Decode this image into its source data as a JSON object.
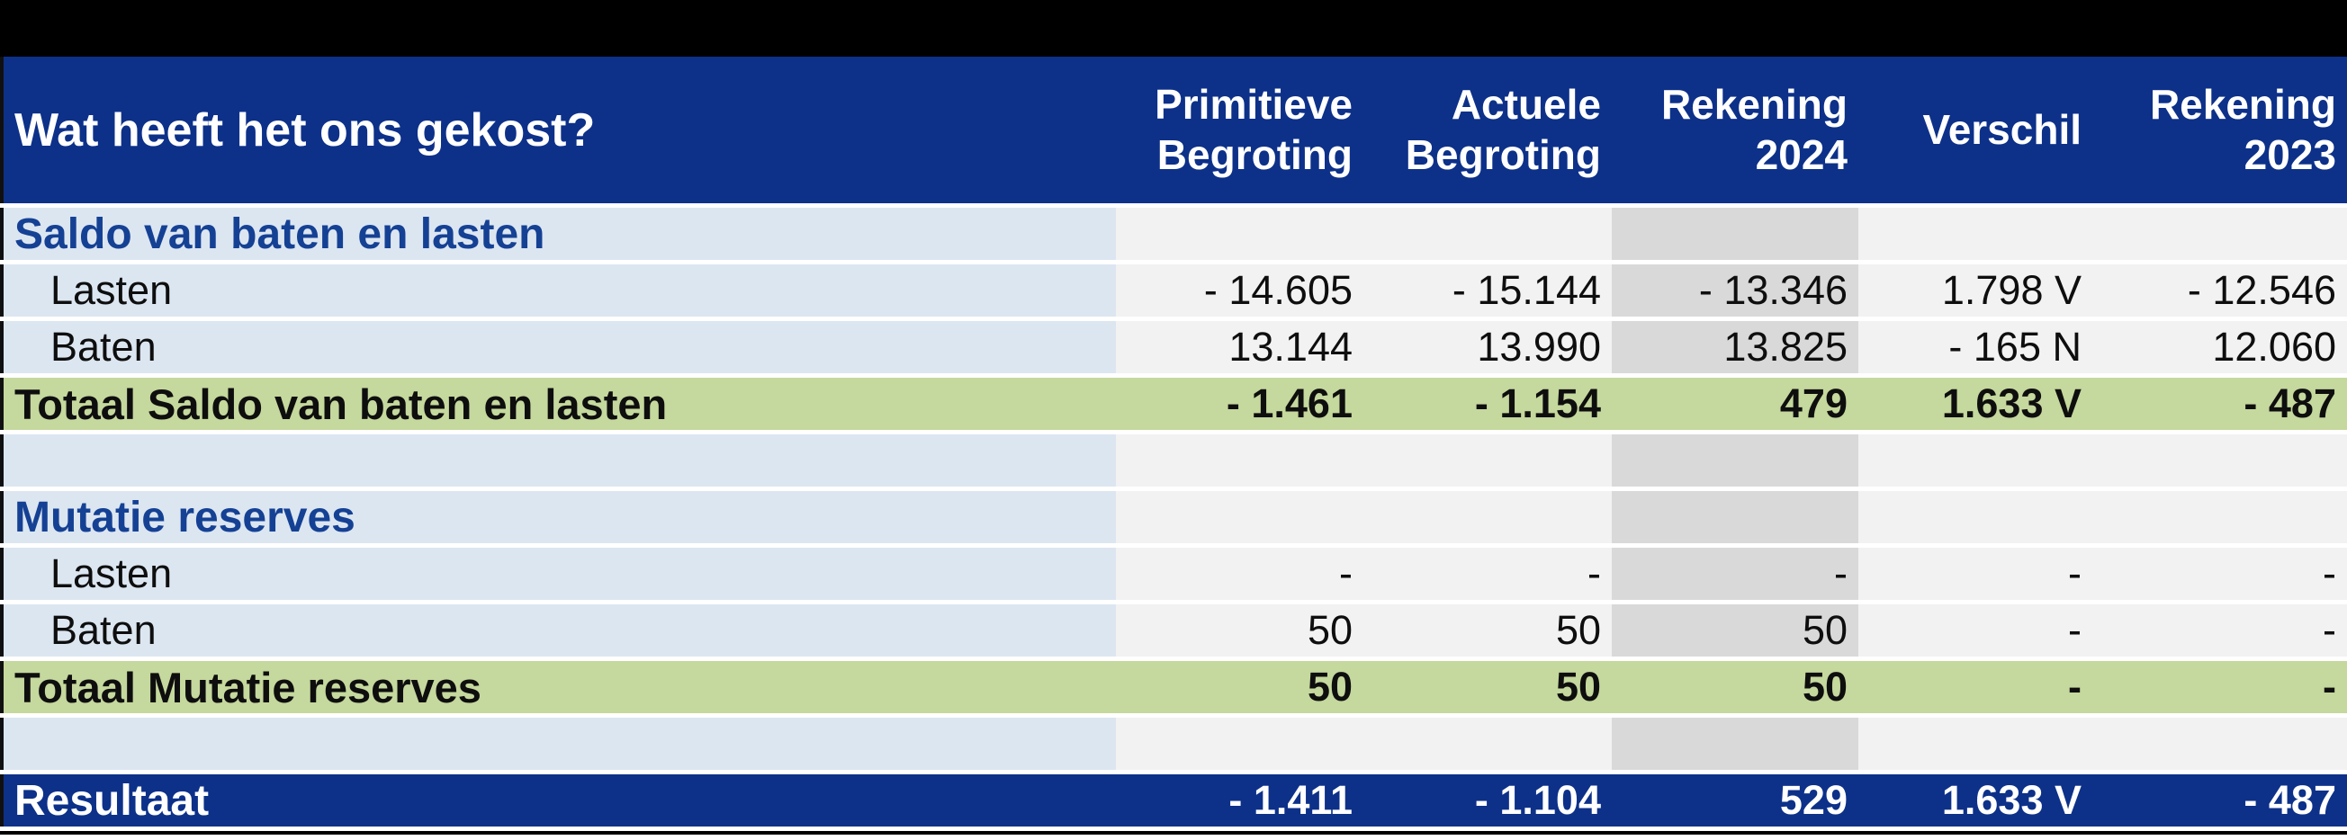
{
  "colors": {
    "top_band": "#000000",
    "header_bg": "#0d3189",
    "header_text": "#ffffff",
    "label_col_bg": "#dce6f1",
    "numeric_col_bg": "#f2f2f2",
    "rekening2024_col_bg": "#d9d9d9",
    "total_row_bg": "#c5d89d",
    "section_text": "#154194",
    "result_row_bg": "#0d3189",
    "row_gap": "#ffffff",
    "bottom_line": "#000000"
  },
  "header": {
    "title": "Wat heeft het ons gekost?",
    "columns": [
      "Primitieve\nBegroting",
      "Actuele\nBegroting",
      "Rekening\n2024",
      "Verschil",
      "Rekening\n2023"
    ]
  },
  "rows": [
    {
      "type": "section",
      "label": "Saldo van baten en lasten",
      "values": [
        "",
        "",
        "",
        "",
        ""
      ]
    },
    {
      "type": "data",
      "label": "Lasten",
      "values": [
        "- 14.605",
        "- 15.144",
        "- 13.346",
        "1.798 V",
        "- 12.546"
      ]
    },
    {
      "type": "data",
      "label": "Baten",
      "values": [
        "13.144",
        "13.990",
        "13.825",
        "- 165 N",
        "12.060"
      ]
    },
    {
      "type": "total",
      "label": "Totaal Saldo van baten en lasten",
      "values": [
        "- 1.461",
        "- 1.154",
        "479",
        "1.633 V",
        "- 487"
      ]
    },
    {
      "type": "spacer",
      "label": "",
      "values": [
        "",
        "",
        "",
        "",
        ""
      ]
    },
    {
      "type": "section",
      "label": "Mutatie reserves",
      "values": [
        "",
        "",
        "",
        "",
        ""
      ]
    },
    {
      "type": "data",
      "label": "Lasten",
      "values": [
        "-",
        "-",
        "-",
        "-",
        "-"
      ]
    },
    {
      "type": "data",
      "label": "Baten",
      "values": [
        "50",
        "50",
        "50",
        "-",
        "-"
      ]
    },
    {
      "type": "total",
      "label": "Totaal Mutatie reserves",
      "values": [
        "50",
        "50",
        "50",
        "-",
        "-"
      ]
    },
    {
      "type": "spacer",
      "label": "",
      "values": [
        "",
        "",
        "",
        "",
        ""
      ]
    },
    {
      "type": "result",
      "label": "Resultaat",
      "values": [
        "- 1.411",
        "- 1.104",
        "529",
        "1.633 V",
        "- 487"
      ]
    }
  ]
}
